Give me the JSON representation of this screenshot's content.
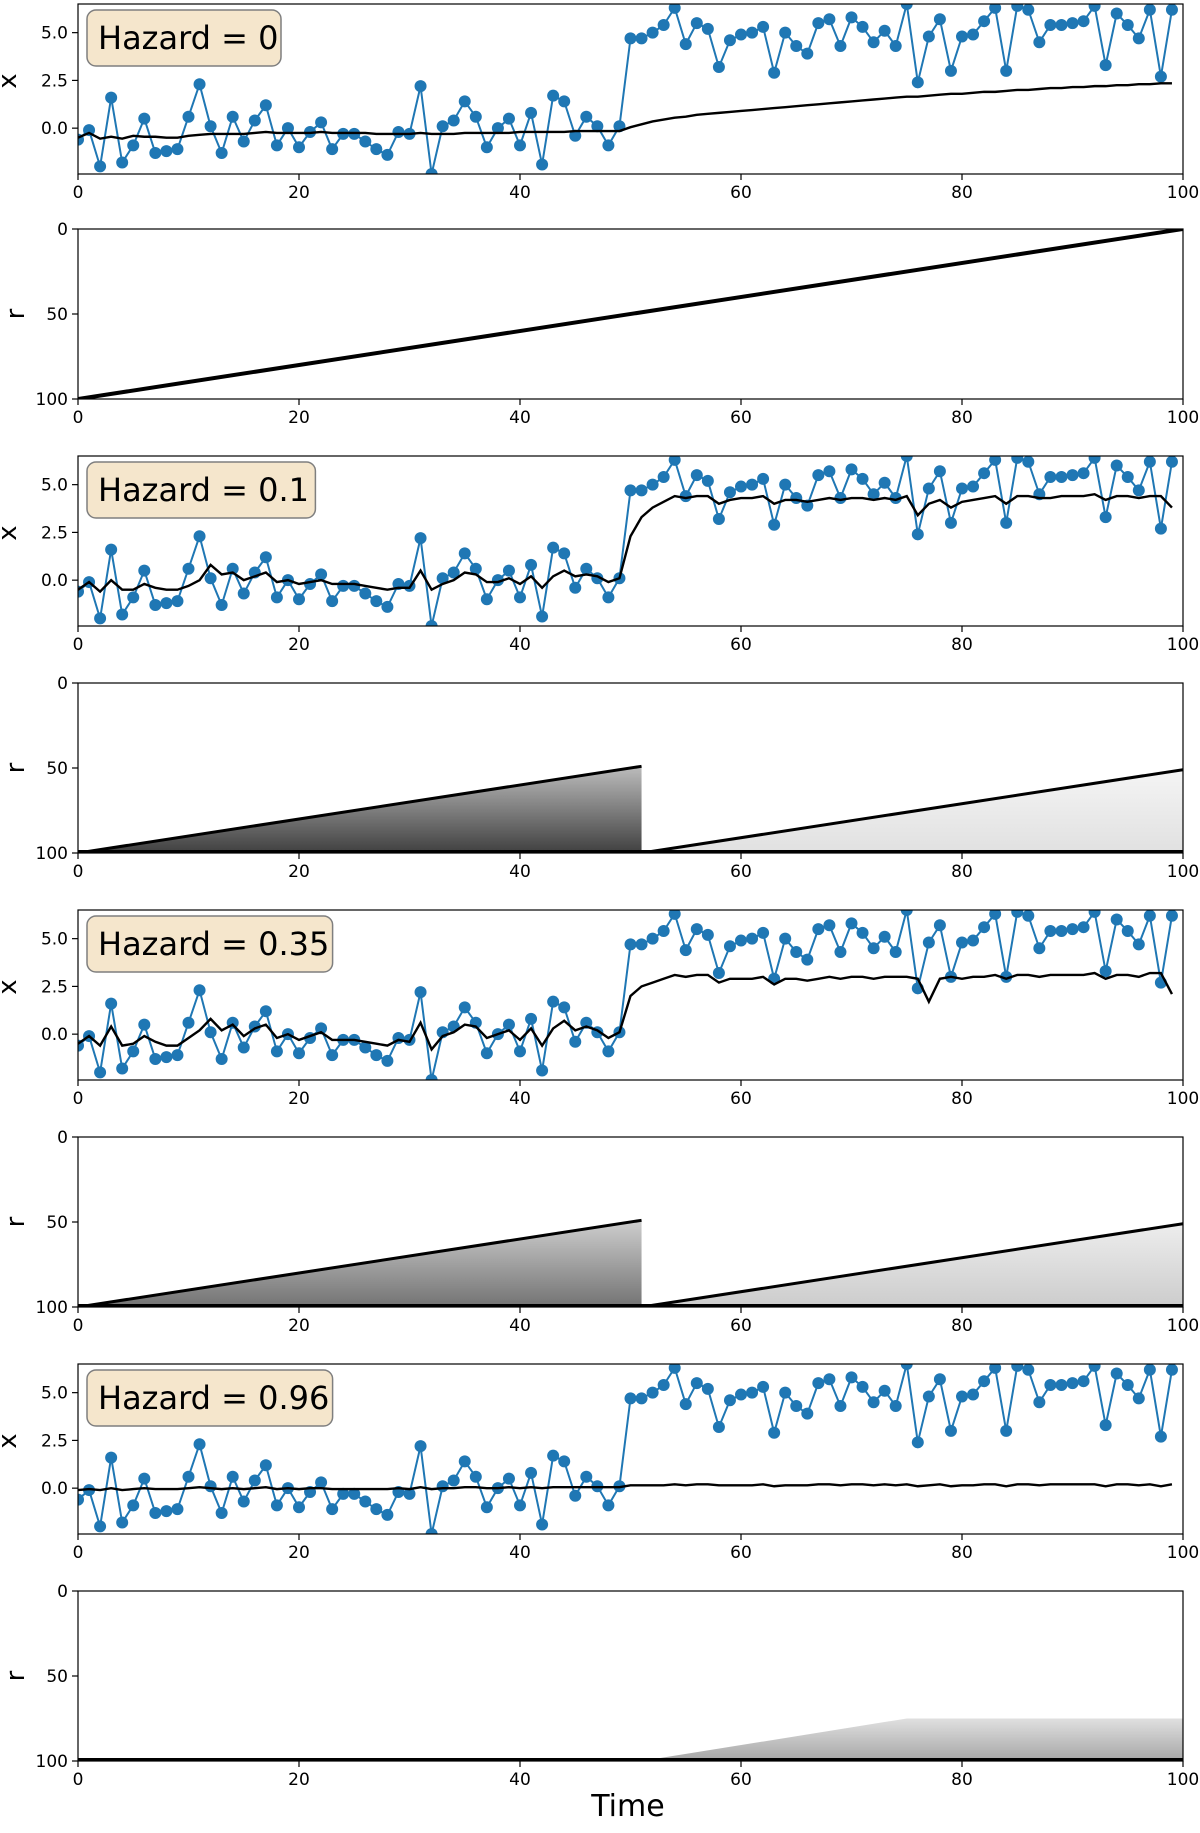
{
  "figure": {
    "xlabel": "Time"
  },
  "chart_data": {
    "x": [
      0,
      1,
      2,
      3,
      4,
      5,
      6,
      7,
      8,
      9,
      10,
      11,
      12,
      13,
      14,
      15,
      16,
      17,
      18,
      19,
      20,
      21,
      22,
      23,
      24,
      25,
      26,
      27,
      28,
      29,
      30,
      31,
      32,
      33,
      34,
      35,
      36,
      37,
      38,
      39,
      40,
      41,
      42,
      43,
      44,
      45,
      46,
      47,
      48,
      49,
      50,
      51,
      52,
      53,
      54,
      55,
      56,
      57,
      58,
      59,
      60,
      61,
      62,
      63,
      64,
      65,
      66,
      67,
      68,
      69,
      70,
      71,
      72,
      73,
      74,
      75,
      76,
      77,
      78,
      79,
      80,
      81,
      82,
      83,
      84,
      85,
      86,
      87,
      88,
      89,
      90,
      91,
      92,
      93,
      94,
      95,
      96,
      97,
      98,
      99
    ],
    "observations": [
      -0.6,
      -0.1,
      -2.0,
      1.6,
      -1.8,
      -0.9,
      0.5,
      -1.3,
      -1.2,
      -1.1,
      0.6,
      2.3,
      0.1,
      -1.3,
      0.6,
      -0.7,
      0.4,
      1.2,
      -0.9,
      0.0,
      -1.0,
      -0.2,
      0.3,
      -1.1,
      -0.3,
      -0.3,
      -0.7,
      -1.1,
      -1.4,
      -0.2,
      -0.3,
      2.2,
      -2.4,
      0.1,
      0.4,
      1.4,
      0.6,
      -1.0,
      0.0,
      0.5,
      -0.9,
      0.8,
      -1.9,
      1.7,
      1.4,
      -0.4,
      0.6,
      0.1,
      -0.9,
      0.1,
      4.7,
      4.7,
      5.0,
      5.4,
      6.3,
      4.4,
      5.5,
      5.2,
      3.2,
      4.6,
      4.9,
      5.0,
      5.3,
      2.9,
      5.0,
      4.3,
      3.9,
      5.5,
      5.7,
      4.3,
      5.8,
      5.3,
      4.5,
      5.1,
      4.3,
      6.5,
      2.4,
      4.8,
      5.7,
      3.0,
      4.8,
      4.9,
      5.6,
      6.3,
      3.0,
      6.4,
      6.2,
      4.5,
      5.4,
      5.4,
      5.5,
      5.6,
      6.4,
      3.3,
      6.0,
      5.4,
      4.7,
      6.2,
      2.7,
      6.2
    ],
    "panels": [
      {
        "hazard_label": "Hazard = 0",
        "x_panel": {
          "type": "line",
          "ylabel": "x",
          "xlim": [
            0,
            100
          ],
          "ylim": [
            -2.4,
            6.5
          ],
          "yticks": [
            "5.0",
            "2.5",
            "0.0"
          ],
          "xticks": [
            "0",
            "20",
            "40",
            "60",
            "80",
            "100"
          ],
          "mean": [
            -0.5,
            -0.25,
            -0.55,
            -0.45,
            -0.55,
            -0.4,
            -0.45,
            -0.45,
            -0.5,
            -0.5,
            -0.4,
            -0.35,
            -0.3,
            -0.3,
            -0.3,
            -0.3,
            -0.25,
            -0.2,
            -0.25,
            -0.25,
            -0.25,
            -0.25,
            -0.2,
            -0.25,
            -0.25,
            -0.25,
            -0.25,
            -0.3,
            -0.3,
            -0.3,
            -0.3,
            -0.25,
            -0.3,
            -0.3,
            -0.3,
            -0.25,
            -0.25,
            -0.25,
            -0.25,
            -0.25,
            -0.2,
            -0.2,
            -0.2,
            -0.2,
            -0.2,
            -0.15,
            -0.15,
            -0.15,
            -0.15,
            -0.15,
            0.05,
            0.2,
            0.35,
            0.45,
            0.55,
            0.6,
            0.7,
            0.75,
            0.8,
            0.85,
            0.9,
            0.95,
            1.0,
            1.05,
            1.1,
            1.15,
            1.2,
            1.25,
            1.3,
            1.35,
            1.4,
            1.45,
            1.5,
            1.55,
            1.6,
            1.65,
            1.65,
            1.7,
            1.75,
            1.8,
            1.8,
            1.85,
            1.9,
            1.9,
            1.95,
            2.0,
            2.0,
            2.05,
            2.1,
            2.1,
            2.15,
            2.15,
            2.2,
            2.2,
            2.25,
            2.25,
            2.3,
            2.3,
            2.35,
            2.35
          ]
        },
        "r_panel": {
          "type": "heatmap",
          "ylabel": "r",
          "xlim": [
            0,
            100
          ],
          "ylim": [
            100,
            0
          ],
          "yticks": [
            "0",
            "50",
            "100"
          ],
          "xticks": [
            "0",
            "20",
            "40",
            "60",
            "80",
            "100"
          ],
          "main_ridge": {
            "from": [
              0,
              100
            ],
            "to": [
              100,
              0
            ],
            "intensity": 1.0
          }
        }
      },
      {
        "hazard_label": "Hazard = 0.1",
        "x_panel": {
          "type": "line",
          "ylabel": "x",
          "xlim": [
            0,
            100
          ],
          "ylim": [
            -2.4,
            6.5
          ],
          "yticks": [
            "5.0",
            "2.5",
            "0.0"
          ],
          "xticks": [
            "0",
            "20",
            "40",
            "60",
            "80",
            "100"
          ],
          "mean": [
            -0.5,
            -0.1,
            -0.6,
            0.0,
            -0.5,
            -0.5,
            -0.2,
            -0.4,
            -0.5,
            -0.5,
            -0.3,
            0.0,
            0.8,
            0.3,
            0.4,
            0.0,
            0.2,
            0.4,
            -0.1,
            0.0,
            -0.2,
            -0.1,
            0.0,
            -0.2,
            -0.2,
            -0.2,
            -0.3,
            -0.4,
            -0.5,
            -0.4,
            -0.4,
            0.5,
            -0.5,
            -0.2,
            0.0,
            0.4,
            0.3,
            -0.1,
            -0.1,
            0.1,
            -0.2,
            0.2,
            -0.4,
            0.2,
            0.5,
            0.2,
            0.3,
            0.2,
            -0.1,
            0.1,
            2.3,
            3.3,
            3.8,
            4.1,
            4.4,
            4.3,
            4.4,
            4.4,
            4.0,
            4.2,
            4.3,
            4.3,
            4.4,
            4.0,
            4.2,
            4.2,
            4.1,
            4.2,
            4.3,
            4.2,
            4.3,
            4.3,
            4.2,
            4.3,
            4.2,
            4.4,
            3.4,
            4.0,
            4.2,
            3.8,
            4.1,
            4.2,
            4.3,
            4.4,
            4.0,
            4.4,
            4.4,
            4.3,
            4.3,
            4.4,
            4.4,
            4.4,
            4.5,
            4.2,
            4.4,
            4.4,
            4.3,
            4.4,
            4.4,
            3.8
          ]
        },
        "r_panel": {
          "type": "heatmap",
          "ylabel": "r",
          "xlim": [
            0,
            100
          ],
          "ylim": [
            100,
            0
          ],
          "yticks": [
            "0",
            "50",
            "100"
          ],
          "xticks": [
            "0",
            "20",
            "40",
            "60",
            "80",
            "100"
          ],
          "regimes": [
            {
              "start": 0,
              "end": 51,
              "shade": 0.75
            },
            {
              "start": 51,
              "end": 100,
              "shade": 0.12
            }
          ]
        }
      },
      {
        "hazard_label": "Hazard = 0.35",
        "x_panel": {
          "type": "line",
          "ylabel": "x",
          "xlim": [
            0,
            100
          ],
          "ylim": [
            -2.4,
            6.5
          ],
          "yticks": [
            "5.0",
            "2.5",
            "0.0"
          ],
          "xticks": [
            "0",
            "20",
            "40",
            "60",
            "80",
            "100"
          ],
          "mean": [
            -0.5,
            -0.1,
            -0.6,
            0.4,
            -0.6,
            -0.5,
            -0.1,
            -0.4,
            -0.6,
            -0.6,
            -0.2,
            0.2,
            0.8,
            0.2,
            0.5,
            -0.1,
            0.3,
            0.5,
            -0.2,
            0.0,
            -0.3,
            -0.1,
            0.1,
            -0.3,
            -0.3,
            -0.3,
            -0.4,
            -0.5,
            -0.6,
            -0.3,
            -0.4,
            0.6,
            -0.8,
            -0.1,
            0.1,
            0.5,
            0.4,
            -0.2,
            0.0,
            0.2,
            -0.3,
            0.3,
            -0.6,
            0.3,
            0.7,
            0.2,
            0.4,
            0.2,
            -0.2,
            0.1,
            2.0,
            2.5,
            2.7,
            2.9,
            3.1,
            3.0,
            3.1,
            3.1,
            2.7,
            2.9,
            2.9,
            2.9,
            3.0,
            2.6,
            2.9,
            2.9,
            2.8,
            2.9,
            3.0,
            2.9,
            3.0,
            3.0,
            2.9,
            3.0,
            3.0,
            3.0,
            2.9,
            1.7,
            2.9,
            3.0,
            2.9,
            3.0,
            3.0,
            3.1,
            2.9,
            3.1,
            3.1,
            3.0,
            3.1,
            3.1,
            3.1,
            3.1,
            3.2,
            2.9,
            3.1,
            3.1,
            3.0,
            3.2,
            3.2,
            2.1
          ]
        },
        "r_panel": {
          "type": "heatmap",
          "ylabel": "r",
          "xlim": [
            0,
            100
          ],
          "ylim": [
            100,
            0
          ],
          "yticks": [
            "0",
            "50",
            "100"
          ],
          "xticks": [
            "0",
            "20",
            "40",
            "60",
            "80",
            "100"
          ],
          "regimes": [
            {
              "start": 0,
              "end": 51,
              "shade": 0.55
            },
            {
              "start": 51,
              "end": 100,
              "shade": 0.2
            }
          ]
        }
      },
      {
        "hazard_label": "Hazard = 0.96",
        "x_panel": {
          "type": "line",
          "ylabel": "x",
          "xlim": [
            0,
            100
          ],
          "ylim": [
            -2.4,
            6.5
          ],
          "yticks": [
            "5.0",
            "2.5",
            "0.0"
          ],
          "xticks": [
            "0",
            "20",
            "40",
            "60",
            "80",
            "100"
          ],
          "mean": [
            -0.1,
            -0.05,
            -0.1,
            0.0,
            -0.1,
            -0.05,
            0.0,
            -0.05,
            -0.05,
            -0.05,
            0.0,
            0.05,
            0.0,
            -0.05,
            0.0,
            -0.05,
            0.0,
            0.05,
            -0.05,
            0.0,
            -0.05,
            0.0,
            0.0,
            -0.05,
            -0.05,
            -0.05,
            -0.05,
            -0.05,
            -0.05,
            0.0,
            -0.05,
            0.05,
            -0.05,
            0.0,
            0.0,
            0.05,
            0.05,
            0.0,
            0.0,
            0.05,
            0.0,
            0.05,
            0.0,
            0.05,
            0.05,
            0.05,
            0.05,
            0.05,
            0.05,
            0.05,
            0.15,
            0.15,
            0.15,
            0.15,
            0.2,
            0.15,
            0.2,
            0.2,
            0.15,
            0.15,
            0.15,
            0.15,
            0.2,
            0.1,
            0.15,
            0.15,
            0.15,
            0.2,
            0.2,
            0.15,
            0.2,
            0.2,
            0.15,
            0.2,
            0.15,
            0.2,
            0.1,
            0.15,
            0.2,
            0.1,
            0.15,
            0.15,
            0.2,
            0.2,
            0.1,
            0.2,
            0.2,
            0.15,
            0.2,
            0.2,
            0.2,
            0.2,
            0.2,
            0.1,
            0.2,
            0.2,
            0.15,
            0.2,
            0.1,
            0.2
          ]
        },
        "r_panel": {
          "type": "heatmap",
          "ylabel": "r",
          "xlim": [
            0,
            100
          ],
          "ylim": [
            100,
            0
          ],
          "yticks": [
            "0",
            "50",
            "100"
          ],
          "xticks": [
            "0",
            "20",
            "40",
            "60",
            "80",
            "100"
          ],
          "regimes": [
            {
              "start": 51,
              "end": 100,
              "shade": 0.35,
              "max_run": 25
            }
          ]
        }
      }
    ]
  },
  "style": {
    "obs_color": "#1f77b4",
    "mean_color": "#000000",
    "label_bg": "#f5e6cc",
    "label_border": "#7f7f7f",
    "axis_color": "#000000"
  }
}
